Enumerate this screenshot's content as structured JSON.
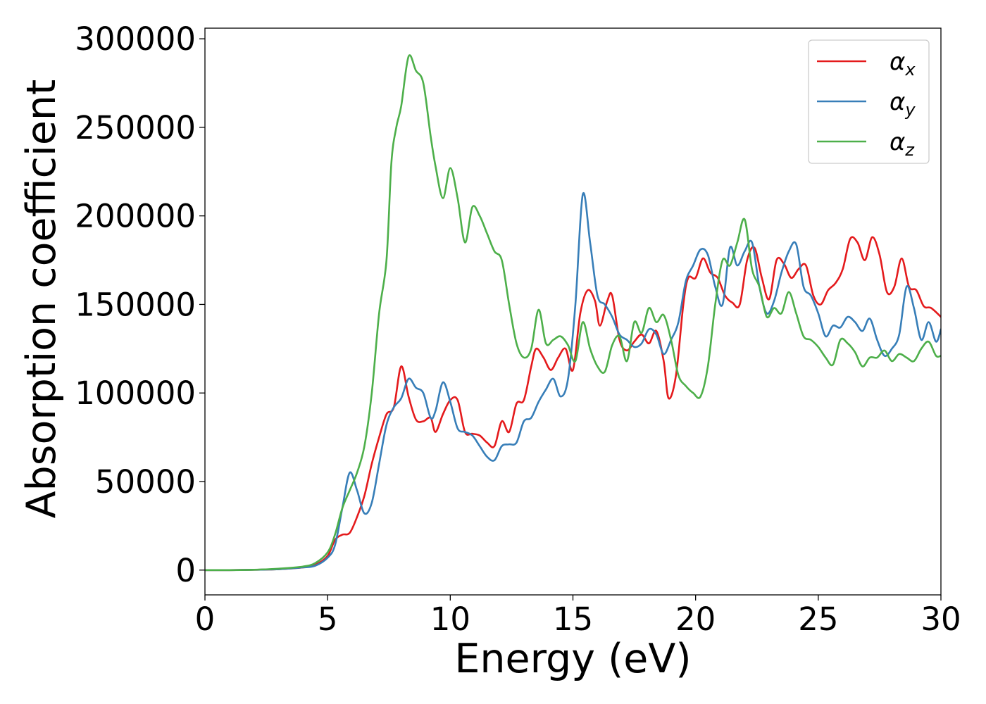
{
  "chart_data": {
    "type": "line",
    "xlabel": "Energy (eV)",
    "ylabel": "Absorption coefficient",
    "xlim": [
      0,
      30
    ],
    "ylim": [
      -14000,
      306000
    ],
    "xticks": [
      "0",
      "5",
      "10",
      "15",
      "20",
      "25",
      "30"
    ],
    "yticks": [
      "0",
      "50000",
      "100000",
      "150000",
      "200000",
      "250000",
      "300000"
    ],
    "grid": false,
    "legend_position": "top-right",
    "series": [
      {
        "name": "αx",
        "symbol": "α",
        "subscript": "x",
        "color": "#e41a1c",
        "x": [
          0,
          1,
          2,
          3,
          4,
          4.5,
          5,
          5.3,
          5.6,
          5.9,
          6.2,
          6.5,
          6.8,
          7.1,
          7.4,
          7.7,
          8.0,
          8.3,
          8.6,
          8.9,
          9.2,
          9.4,
          9.7,
          10.0,
          10.3,
          10.6,
          10.9,
          11.2,
          11.5,
          11.8,
          12.1,
          12.4,
          12.7,
          13.0,
          13.3,
          13.5,
          13.8,
          14.1,
          14.4,
          14.7,
          15.0,
          15.3,
          15.6,
          15.9,
          16.1,
          16.4,
          16.6,
          16.9,
          17.2,
          17.5,
          17.8,
          18.1,
          18.4,
          18.7,
          18.9,
          19.2,
          19.5,
          19.7,
          20.0,
          20.3,
          20.6,
          20.9,
          21.2,
          21.5,
          21.8,
          22.1,
          22.4,
          22.7,
          23.0,
          23.3,
          23.6,
          23.9,
          24.2,
          24.5,
          24.8,
          25.1,
          25.4,
          25.7,
          26.0,
          26.3,
          26.6,
          26.9,
          27.2,
          27.5,
          27.8,
          28.1,
          28.4,
          28.7,
          29.0,
          29.3,
          29.6,
          30.0
        ],
        "y": [
          0,
          0,
          200,
          500,
          1500,
          3000,
          8000,
          17000,
          20000,
          21000,
          30000,
          42000,
          60000,
          75000,
          88000,
          92000,
          115000,
          98000,
          85000,
          84000,
          86000,
          78000,
          88000,
          96000,
          96000,
          78000,
          77000,
          76000,
          72000,
          70000,
          84000,
          78000,
          94000,
          96000,
          115000,
          125000,
          120000,
          113000,
          120000,
          125000,
          113000,
          145000,
          158000,
          152000,
          138000,
          152000,
          155000,
          130000,
          124000,
          129000,
          133000,
          128000,
          135000,
          118000,
          97000,
          110000,
          150000,
          165000,
          165000,
          176000,
          168000,
          165000,
          155000,
          151000,
          150000,
          175000,
          182000,
          165000,
          153000,
          175000,
          173000,
          165000,
          170000,
          172000,
          155000,
          150000,
          158000,
          162000,
          170000,
          187000,
          185000,
          175000,
          188000,
          178000,
          157000,
          160000,
          176000,
          160000,
          158000,
          149000,
          148000,
          143000
        ]
      },
      {
        "name": "αy",
        "symbol": "α",
        "subscript": "y",
        "color": "#377eb8",
        "x": [
          0,
          1,
          2,
          3,
          4,
          4.5,
          5,
          5.3,
          5.6,
          5.9,
          6.2,
          6.5,
          6.8,
          7.1,
          7.4,
          7.7,
          8.0,
          8.3,
          8.6,
          8.9,
          9.2,
          9.4,
          9.7,
          10.0,
          10.3,
          10.6,
          10.9,
          11.2,
          11.5,
          11.8,
          12.1,
          12.4,
          12.7,
          13.0,
          13.3,
          13.6,
          13.9,
          14.2,
          14.5,
          14.8,
          15.1,
          15.4,
          15.7,
          16.0,
          16.3,
          16.6,
          16.9,
          17.2,
          17.5,
          17.8,
          18.1,
          18.4,
          18.7,
          19.0,
          19.3,
          19.6,
          19.9,
          20.2,
          20.5,
          20.8,
          21.1,
          21.4,
          21.7,
          22.0,
          22.3,
          22.6,
          22.9,
          23.2,
          23.5,
          23.8,
          24.1,
          24.4,
          24.7,
          25.0,
          25.3,
          25.6,
          25.9,
          26.2,
          26.5,
          26.8,
          27.1,
          27.4,
          27.7,
          28.0,
          28.3,
          28.6,
          28.9,
          29.2,
          29.5,
          29.8,
          30.0
        ],
        "y": [
          0,
          0,
          200,
          500,
          1500,
          2500,
          7000,
          14000,
          35000,
          55000,
          45000,
          32000,
          38000,
          60000,
          82000,
          92000,
          97000,
          108000,
          103000,
          100000,
          86000,
          90000,
          106000,
          95000,
          80000,
          78000,
          76000,
          70000,
          64000,
          62000,
          70000,
          71000,
          72000,
          84000,
          86000,
          95000,
          102000,
          108000,
          98000,
          108000,
          150000,
          212000,
          185000,
          155000,
          150000,
          143000,
          133000,
          130000,
          126000,
          128000,
          136000,
          133000,
          122000,
          130000,
          140000,
          163000,
          172000,
          181000,
          178000,
          160000,
          150000,
          182000,
          172000,
          180000,
          185000,
          160000,
          145000,
          152000,
          168000,
          180000,
          184000,
          160000,
          155000,
          145000,
          132000,
          138000,
          137000,
          143000,
          140000,
          135000,
          142000,
          130000,
          121000,
          125000,
          133000,
          160000,
          148000,
          130000,
          140000,
          129000,
          136000
        ]
      },
      {
        "name": "αz",
        "symbol": "α",
        "subscript": "z",
        "color": "#4daf4a",
        "x": [
          0,
          1,
          2,
          3,
          4,
          4.5,
          5,
          5.3,
          5.6,
          5.9,
          6.2,
          6.5,
          6.8,
          7.1,
          7.4,
          7.6,
          7.8,
          8.0,
          8.3,
          8.6,
          8.9,
          9.2,
          9.4,
          9.7,
          10.0,
          10.3,
          10.6,
          10.9,
          11.2,
          11.5,
          11.8,
          12.1,
          12.4,
          12.7,
          13.0,
          13.3,
          13.6,
          13.9,
          14.2,
          14.5,
          14.8,
          15.1,
          15.4,
          15.7,
          16.0,
          16.3,
          16.6,
          16.9,
          17.2,
          17.5,
          17.8,
          18.1,
          18.4,
          18.7,
          19.0,
          19.3,
          19.6,
          19.9,
          20.2,
          20.5,
          20.8,
          21.1,
          21.4,
          21.7,
          22.0,
          22.3,
          22.6,
          22.9,
          23.2,
          23.5,
          23.8,
          24.1,
          24.4,
          24.7,
          25.0,
          25.3,
          25.6,
          25.9,
          26.2,
          26.5,
          26.8,
          27.1,
          27.4,
          27.7,
          28.0,
          28.3,
          28.6,
          28.9,
          29.2,
          29.5,
          29.8,
          30.0
        ],
        "y": [
          0,
          0,
          200,
          800,
          2000,
          4000,
          10000,
          20000,
          35000,
          45000,
          55000,
          70000,
          100000,
          145000,
          175000,
          230000,
          250000,
          262000,
          290000,
          282000,
          275000,
          245000,
          228000,
          210000,
          227000,
          210000,
          185000,
          205000,
          200000,
          190000,
          180000,
          175000,
          150000,
          128000,
          120000,
          125000,
          147000,
          128000,
          130000,
          132000,
          127000,
          118000,
          140000,
          125000,
          115000,
          112000,
          127000,
          132000,
          118000,
          140000,
          134000,
          148000,
          140000,
          144000,
          130000,
          110000,
          104000,
          100000,
          98000,
          115000,
          150000,
          175000,
          172000,
          185000,
          198000,
          170000,
          160000,
          143000,
          148000,
          145000,
          157000,
          145000,
          132000,
          130000,
          126000,
          120000,
          116000,
          130000,
          128000,
          123000,
          115000,
          120000,
          120000,
          124000,
          118000,
          122000,
          120000,
          118000,
          125000,
          129000,
          121000,
          121000
        ]
      }
    ]
  }
}
